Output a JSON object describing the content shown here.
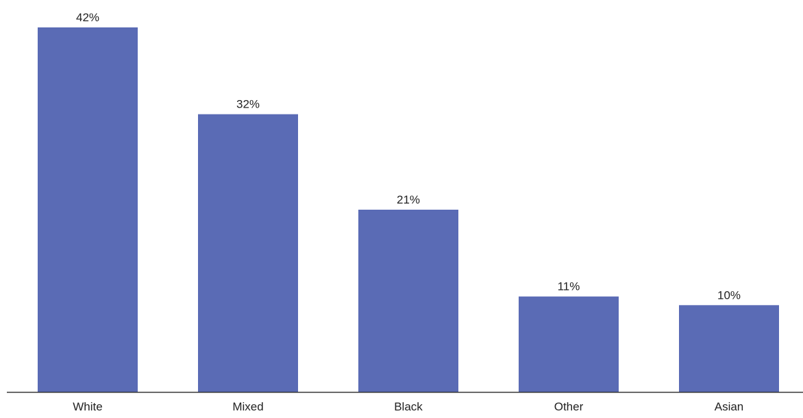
{
  "chart_data": {
    "type": "bar",
    "title": "",
    "xlabel": "",
    "ylabel": "",
    "categories": [
      "White",
      "Mixed",
      "Black",
      "Other",
      "Asian"
    ],
    "values": [
      42,
      32,
      21,
      11,
      10
    ],
    "data_labels": [
      "42%",
      "32%",
      "21%",
      "11%",
      "10%"
    ],
    "ylim": [
      0,
      42
    ],
    "grid": false,
    "legend": "none",
    "bar_color": "#5a6bb5",
    "axis_color": "#333333"
  }
}
